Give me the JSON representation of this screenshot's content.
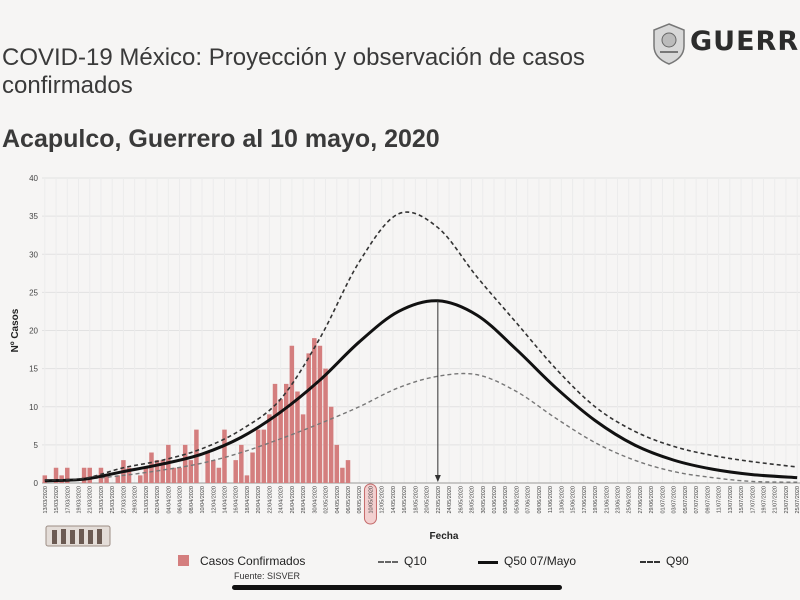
{
  "header": {
    "title": "COVID-19 México: Proyección y observación de casos confirmados",
    "subtitle": "Acapulco, Guerrero al 10 mayo, 2020",
    "brand_text": "GUERR",
    "brand_icon": "state-emblem-icon"
  },
  "colors": {
    "bars": "#d47e7e",
    "median": "#111111",
    "band": "#555555",
    "grid": "#e2e2e2"
  },
  "chart_data": {
    "type": "bar",
    "title": "",
    "xlabel": "Fecha",
    "ylabel": "Nº Casos",
    "ylim": [
      0,
      40
    ],
    "yticks": [
      0,
      5,
      10,
      15,
      20,
      25,
      30,
      35,
      40
    ],
    "x_start": "2020-03-13",
    "x_end": "2020-07-25",
    "x_tick_labels": [
      "13/03/2020",
      "15/03/2020",
      "17/03/2020",
      "19/03/2020",
      "21/03/2020",
      "23/03/2020",
      "25/03/2020",
      "27/03/2020",
      "29/03/2020",
      "31/03/2020",
      "02/04/2020",
      "04/04/2020",
      "06/04/2020",
      "08/04/2020",
      "10/04/2020",
      "12/04/2020",
      "14/04/2020",
      "16/04/2020",
      "18/04/2020",
      "20/04/2020",
      "22/04/2020",
      "24/04/2020",
      "26/04/2020",
      "28/04/2020",
      "30/04/2020",
      "02/05/2020",
      "04/05/2020",
      "06/05/2020",
      "08/05/2020",
      "10/05/2020",
      "12/05/2020",
      "14/05/2020",
      "16/05/2020",
      "18/05/2020",
      "20/05/2020",
      "22/05/2020",
      "24/05/2020",
      "26/05/2020",
      "28/05/2020",
      "30/05/2020",
      "01/06/2020",
      "03/06/2020",
      "05/06/2020",
      "07/06/2020",
      "09/06/2020",
      "11/06/2020",
      "13/06/2020",
      "15/06/2020",
      "17/06/2020",
      "19/06/2020",
      "21/06/2020",
      "23/06/2020",
      "25/06/2020",
      "27/06/2020",
      "29/06/2020",
      "01/07/2020",
      "03/07/2020",
      "05/07/2020",
      "07/07/2020",
      "09/07/2020",
      "11/07/2020",
      "13/07/2020",
      "15/07/2020",
      "17/07/2020",
      "19/07/2020",
      "21/07/2020",
      "23/07/2020",
      "25/07/2020"
    ],
    "highlighted_tick": "10/05/2020",
    "peak_marker_date": "2020-05-22",
    "bars": {
      "name": "Casos Confirmados",
      "dates": [
        "2020-03-13",
        "2020-03-14",
        "2020-03-15",
        "2020-03-16",
        "2020-03-17",
        "2020-03-18",
        "2020-03-19",
        "2020-03-20",
        "2020-03-21",
        "2020-03-22",
        "2020-03-23",
        "2020-03-24",
        "2020-03-25",
        "2020-03-26",
        "2020-03-27",
        "2020-03-28",
        "2020-03-29",
        "2020-03-30",
        "2020-03-31",
        "2020-04-01",
        "2020-04-02",
        "2020-04-03",
        "2020-04-04",
        "2020-04-05",
        "2020-04-06",
        "2020-04-07",
        "2020-04-08",
        "2020-04-09",
        "2020-04-10",
        "2020-04-11",
        "2020-04-12",
        "2020-04-13",
        "2020-04-14",
        "2020-04-15",
        "2020-04-16",
        "2020-04-17",
        "2020-04-18",
        "2020-04-19",
        "2020-04-20",
        "2020-04-21",
        "2020-04-22",
        "2020-04-23",
        "2020-04-24",
        "2020-04-25",
        "2020-04-26",
        "2020-04-27",
        "2020-04-28",
        "2020-04-29",
        "2020-04-30",
        "2020-05-01",
        "2020-05-02",
        "2020-05-03",
        "2020-05-04",
        "2020-05-05",
        "2020-05-06"
      ],
      "values": [
        1,
        0,
        2,
        1,
        2,
        0,
        0,
        2,
        2,
        0,
        2,
        1,
        0,
        1,
        3,
        2,
        0,
        1,
        2,
        4,
        3,
        3,
        5,
        2,
        2,
        5,
        3,
        7,
        0,
        4,
        3,
        2,
        7,
        0,
        3,
        5,
        1,
        4,
        7,
        7,
        9,
        13,
        11,
        13,
        18,
        12,
        9,
        17,
        19,
        18,
        15,
        10,
        5,
        2,
        3
      ]
    },
    "series": [
      {
        "name": "Q10",
        "style": "dashed-thin",
        "dates": [
          "2020-03-13",
          "2020-03-20",
          "2020-03-27",
          "2020-04-03",
          "2020-04-10",
          "2020-04-17",
          "2020-04-24",
          "2020-05-01",
          "2020-05-08",
          "2020-05-15",
          "2020-05-22",
          "2020-05-29",
          "2020-06-05",
          "2020-06-12",
          "2020-06-19",
          "2020-06-26",
          "2020-07-03",
          "2020-07-10",
          "2020-07-17",
          "2020-07-25"
        ],
        "values": [
          0.3,
          0.5,
          1.0,
          1.7,
          2.6,
          4.0,
          5.8,
          7.8,
          10.0,
          12.5,
          14.0,
          14.2,
          12.0,
          8.5,
          5.3,
          3.0,
          1.5,
          0.7,
          0.2,
          0.1
        ]
      },
      {
        "name": "Q50 07/Mayo",
        "style": "solid-thick",
        "dates": [
          "2020-03-13",
          "2020-03-20",
          "2020-03-27",
          "2020-04-03",
          "2020-04-10",
          "2020-04-17",
          "2020-04-24",
          "2020-05-01",
          "2020-05-08",
          "2020-05-15",
          "2020-05-22",
          "2020-05-29",
          "2020-06-05",
          "2020-06-12",
          "2020-06-19",
          "2020-06-26",
          "2020-07-03",
          "2020-07-10",
          "2020-07-17",
          "2020-07-25"
        ],
        "values": [
          0.3,
          0.5,
          1.5,
          2.5,
          3.8,
          6.0,
          9.3,
          13.5,
          18.5,
          22.5,
          23.9,
          22.0,
          17.5,
          12.5,
          8.2,
          5.0,
          3.0,
          1.8,
          1.1,
          0.7
        ]
      },
      {
        "name": "Q90",
        "style": "dashed",
        "dates": [
          "2020-03-13",
          "2020-03-20",
          "2020-03-27",
          "2020-04-03",
          "2020-04-10",
          "2020-04-17",
          "2020-04-24",
          "2020-05-01",
          "2020-05-08",
          "2020-05-15",
          "2020-05-22",
          "2020-05-29",
          "2020-06-05",
          "2020-06-12",
          "2020-06-19",
          "2020-06-26",
          "2020-07-03",
          "2020-07-10",
          "2020-07-17",
          "2020-07-25"
        ],
        "values": [
          0.4,
          0.6,
          2.0,
          3.0,
          4.5,
          7.0,
          11.0,
          19.0,
          29.0,
          35.3,
          33.5,
          27.0,
          21.0,
          15.0,
          10.0,
          6.8,
          4.8,
          3.6,
          2.8,
          2.1
        ]
      }
    ],
    "grid": true,
    "legend_position": "bottom"
  },
  "legend": {
    "bars_label": "Casos Confirmados",
    "q10_label": "Q10",
    "q50_label": "Q50 07/Mayo",
    "q90_label": "Q90"
  },
  "footer": {
    "source": "Fuente: SISVER",
    "bottom_logo_icon": "government-logo-icon"
  }
}
